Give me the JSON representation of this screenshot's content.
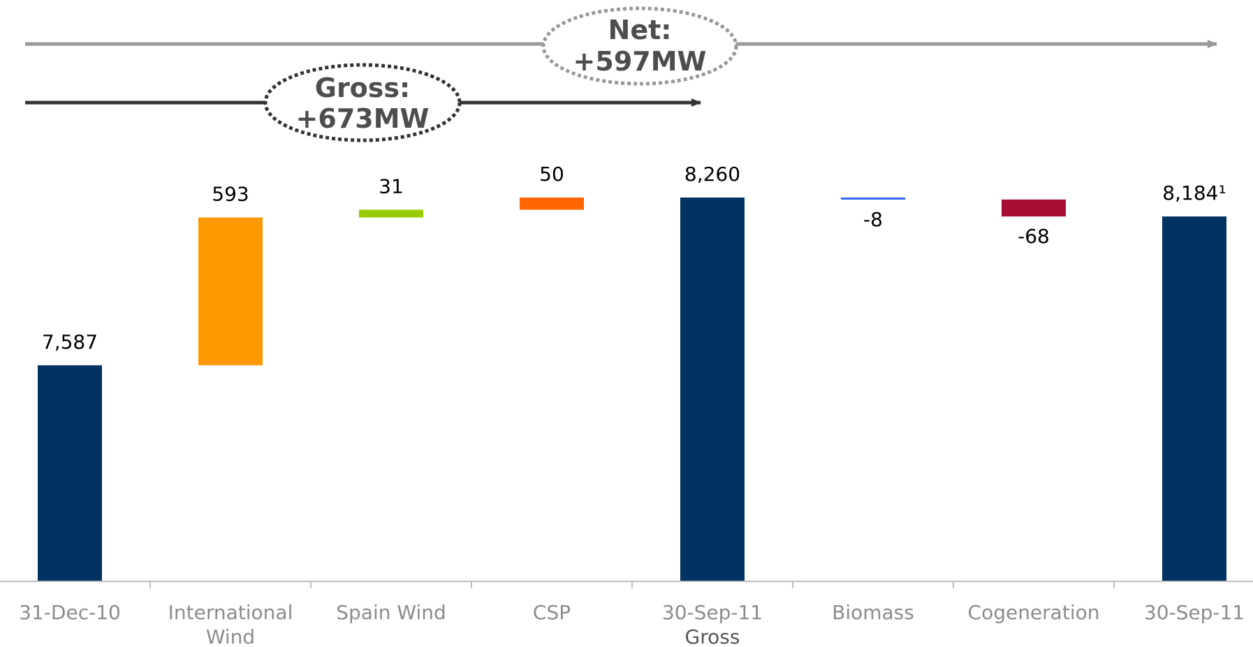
{
  "chart_data": {
    "type": "bar",
    "subtype": "waterfall",
    "categories": [
      [
        "31-Dec-10"
      ],
      [
        "International",
        "Wind"
      ],
      [
        "Spain Wind"
      ],
      [
        "CSP"
      ],
      [
        "30-Sep-11",
        "Gross"
      ],
      [
        "Biomass"
      ],
      [
        "Cogeneration"
      ],
      [
        "30-Sep-11"
      ]
    ],
    "bars": [
      {
        "kind": "total",
        "start": 0,
        "end": 7587,
        "label": "7,587",
        "color": "#003262"
      },
      {
        "kind": "delta",
        "start": 7587,
        "end": 8180,
        "label": "593",
        "color": "#ff9900"
      },
      {
        "kind": "delta",
        "start": 8180,
        "end": 8211,
        "label": "31",
        "color": "#99cc00"
      },
      {
        "kind": "delta",
        "start": 8211,
        "end": 8260,
        "label": "50",
        "color": "#ff6600"
      },
      {
        "kind": "total",
        "start": 0,
        "end": 8260,
        "label": "8,260",
        "color": "#003262"
      },
      {
        "kind": "delta",
        "start": 8260,
        "end": 8252,
        "label": "-8",
        "color": "#3366ff"
      },
      {
        "kind": "delta",
        "start": 8252,
        "end": 8184,
        "label": "-68",
        "color": "#a50d35"
      },
      {
        "kind": "total",
        "start": 0,
        "end": 8184,
        "label": "8,184¹",
        "color": "#003262"
      }
    ],
    "ylim": [
      0,
      8260
    ],
    "grid": false,
    "annotations": {
      "net": {
        "lines": [
          "Net:",
          "+597MW"
        ]
      },
      "gross": {
        "lines": [
          "Gross:",
          "+673MW"
        ]
      }
    }
  },
  "colors": {
    "axis": "#bfbfbf",
    "net_arrow": "#999999",
    "gross_arrow": "#333333"
  }
}
